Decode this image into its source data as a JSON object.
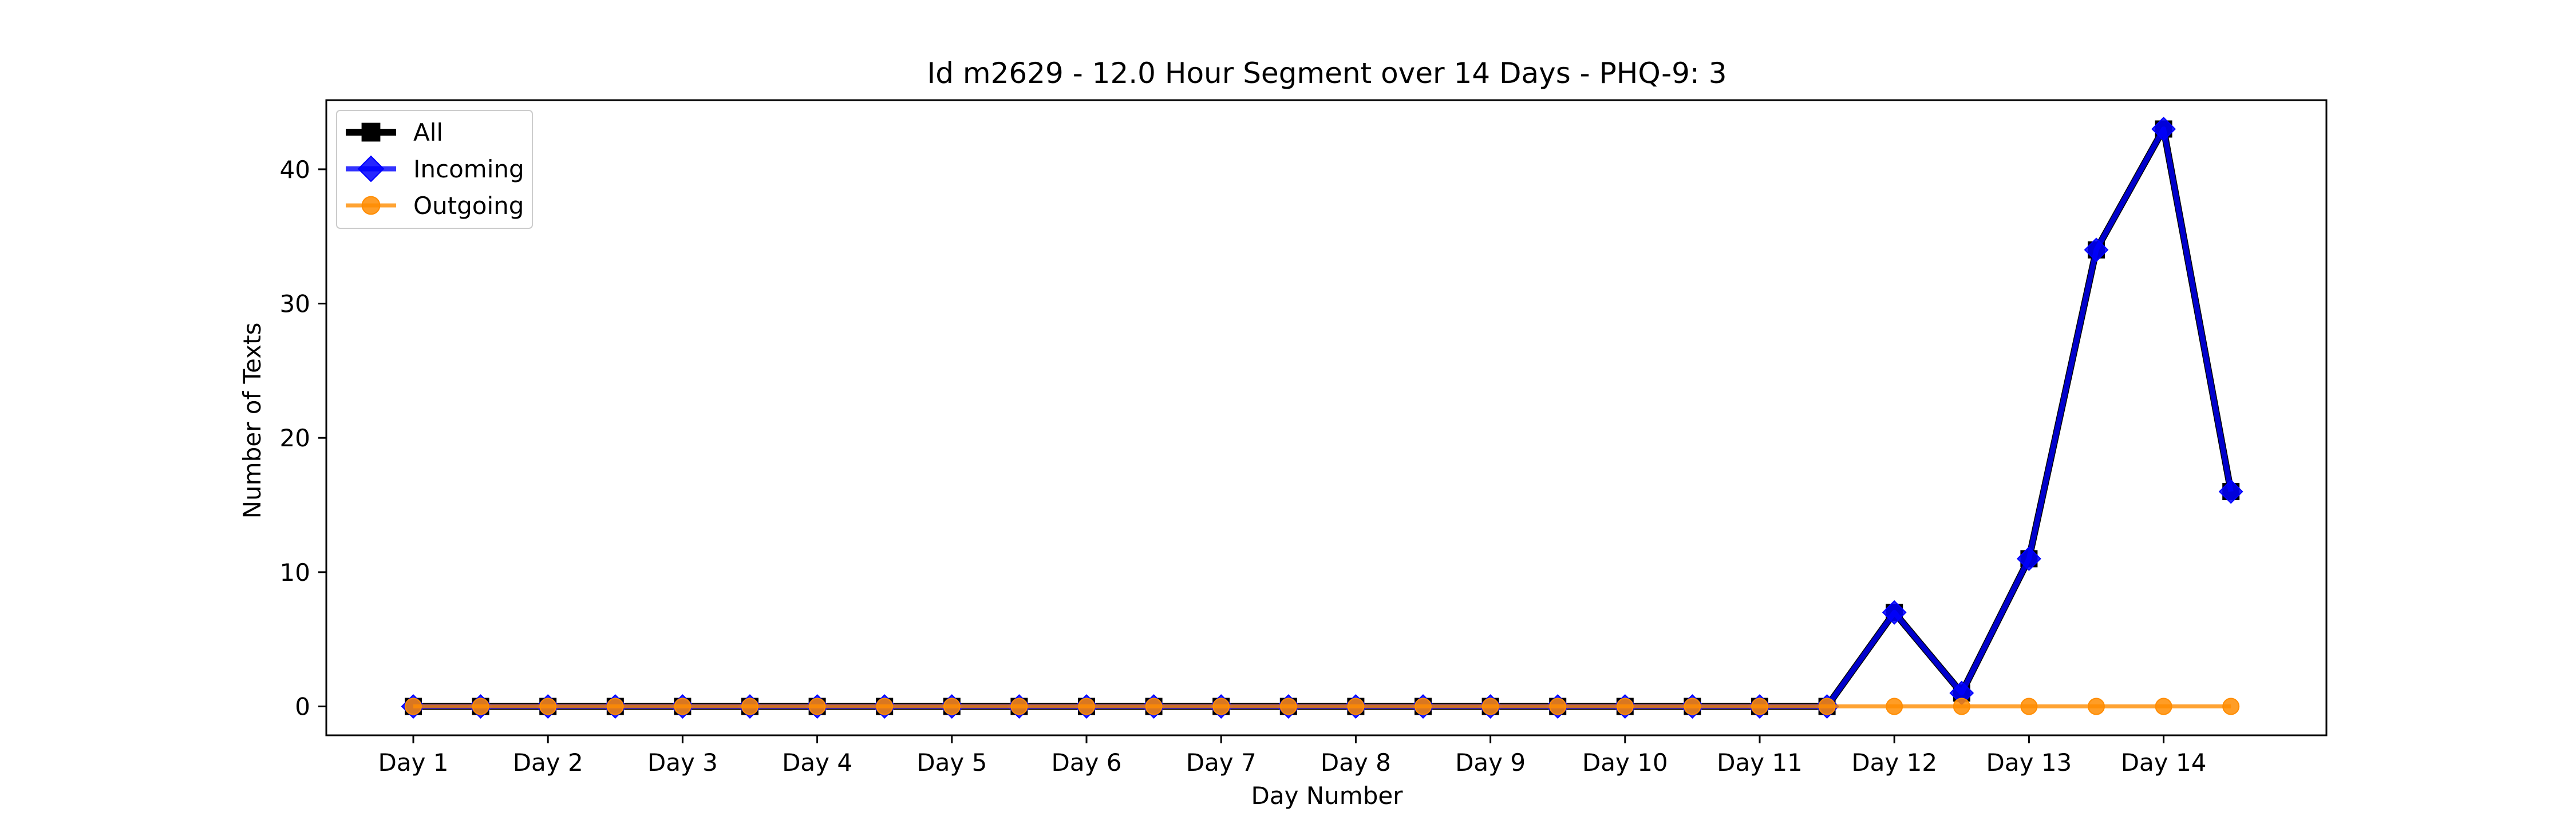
{
  "chart_data": {
    "type": "line",
    "title": "Id m2629 - 12.0 Hour Segment over 14 Days - PHQ-9: 3",
    "xlabel": "Day Number",
    "ylabel": "Number of Texts",
    "x_ticks": [
      "Day 1",
      "Day 2",
      "Day 3",
      "Day 4",
      "Day 5",
      "Day 6",
      "Day 7",
      "Day 8",
      "Day 9",
      "Day 10",
      "Day 11",
      "Day 12",
      "Day 13",
      "Day 14"
    ],
    "x_points_per_day": 2,
    "ylim": [
      -2.15,
      45.15
    ],
    "y_ticks": [
      0,
      10,
      20,
      30,
      40
    ],
    "grid": false,
    "legend_position": "top-left",
    "series": [
      {
        "name": "All",
        "color": "#000000",
        "marker": "square",
        "values": [
          0,
          0,
          0,
          0,
          0,
          0,
          0,
          0,
          0,
          0,
          0,
          0,
          0,
          0,
          0,
          0,
          0,
          0,
          0,
          0,
          0,
          0,
          7,
          1,
          11,
          34,
          43,
          16
        ]
      },
      {
        "name": "Incoming",
        "color": "#0000ff",
        "marker": "diamond",
        "values": [
          0,
          0,
          0,
          0,
          0,
          0,
          0,
          0,
          0,
          0,
          0,
          0,
          0,
          0,
          0,
          0,
          0,
          0,
          0,
          0,
          0,
          0,
          7,
          1,
          11,
          34,
          43,
          16
        ]
      },
      {
        "name": "Outgoing",
        "color": "#ff8c00",
        "marker": "circle",
        "values": [
          0,
          0,
          0,
          0,
          0,
          0,
          0,
          0,
          0,
          0,
          0,
          0,
          0,
          0,
          0,
          0,
          0,
          0,
          0,
          0,
          0,
          0,
          0,
          0,
          0,
          0,
          0,
          0
        ]
      }
    ]
  }
}
